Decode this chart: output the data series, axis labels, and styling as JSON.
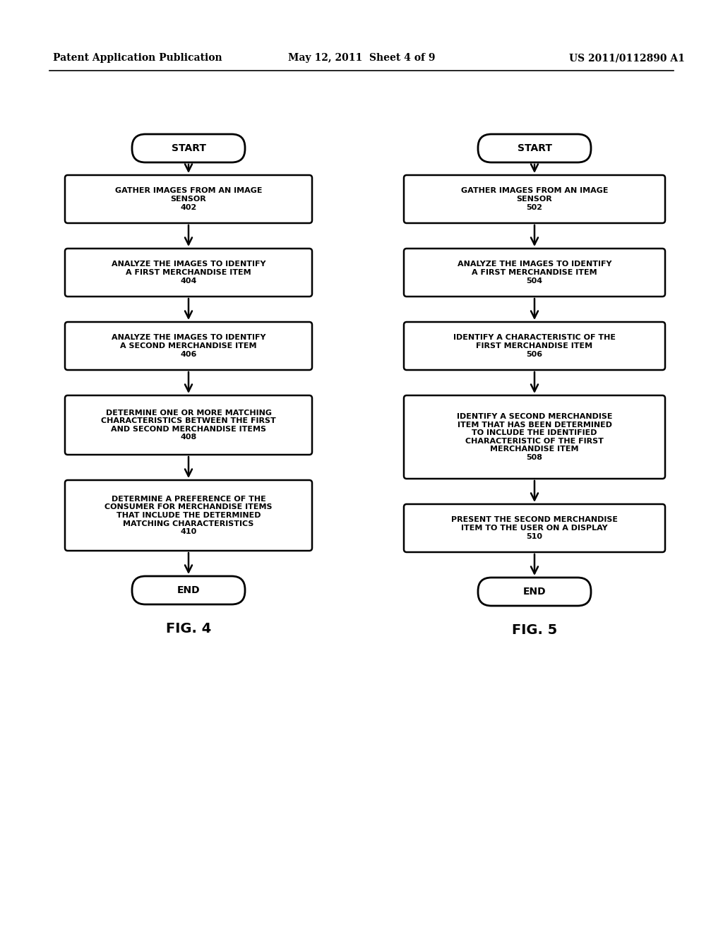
{
  "background_color": "#ffffff",
  "header_left": "Patent Application Publication",
  "header_center": "May 12, 2011  Sheet 4 of 9",
  "header_right": "US 2011/0112890 A1",
  "fig4": {
    "label": "FIG. 4",
    "start_label": "START",
    "end_label": "END",
    "boxes": [
      {
        "text": "GATHER IMAGES FROM AN IMAGE\nSENSOR\n402",
        "lines": 3
      },
      {
        "text": "ANALYZE THE IMAGES TO IDENTIFY\nA FIRST MERCHANDISE ITEM\n404",
        "lines": 3
      },
      {
        "text": "ANALYZE THE IMAGES TO IDENTIFY\nA SECOND MERCHANDISE ITEM\n406",
        "lines": 3
      },
      {
        "text": "DETERMINE ONE OR MORE MATCHING\nCHARACTERISTICS BETWEEN THE FIRST\nAND SECOND MERCHANDISE ITEMS\n408",
        "lines": 4
      },
      {
        "text": "DETERMINE A PREFERENCE OF THE\nCONSUMER FOR MERCHANDISE ITEMS\nTHAT INCLUDE THE DETERMINED\nMATCHING CHARACTERISTICS\n410",
        "lines": 5
      }
    ]
  },
  "fig5": {
    "label": "FIG. 5",
    "start_label": "START",
    "end_label": "END",
    "boxes": [
      {
        "text": "GATHER IMAGES FROM AN IMAGE\nSENSOR\n502",
        "lines": 3
      },
      {
        "text": "ANALYZE THE IMAGES TO IDENTIFY\nA FIRST MERCHANDISE ITEM\n504",
        "lines": 3
      },
      {
        "text": "IDENTIFY A CHARACTERISTIC OF THE\nFIRST MERCHANDISE ITEM\n506",
        "lines": 3
      },
      {
        "text": "IDENTIFY A SECOND MERCHANDISE\nITEM THAT HAS BEEN DETERMINED\nTO INCLUDE THE IDENTIFIED\nCHARACTERISTIC OF THE FIRST\nMERCHANDISE ITEM\n508",
        "lines": 6
      },
      {
        "text": "PRESENT THE SECOND MERCHANDISE\nITEM TO THE USER ON A DISPLAY\n510",
        "lines": 3
      }
    ]
  }
}
